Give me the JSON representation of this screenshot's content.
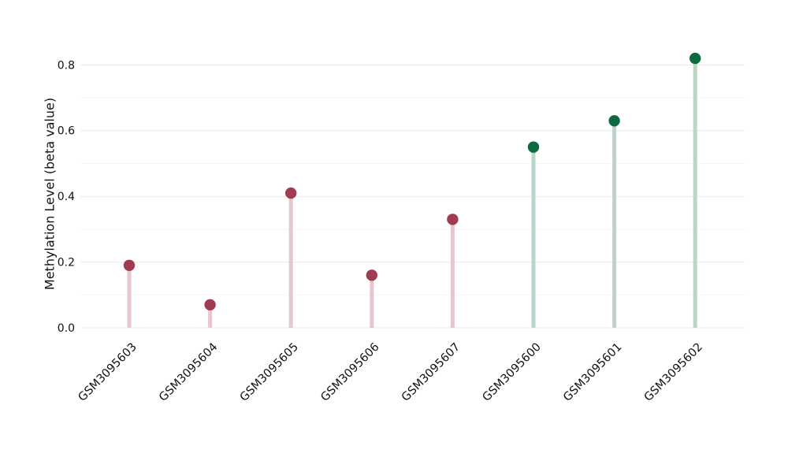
{
  "figure": {
    "background_color": "#ffffff",
    "text_color": "#111111"
  },
  "chart_data": {
    "type": "lollipop",
    "title": "",
    "xlabel": "",
    "ylabel": "Methylation Level (beta value)",
    "categories": [
      "GSM3095603",
      "GSM3095604",
      "GSM3095605",
      "GSM3095606",
      "GSM3095607",
      "GSM3095600",
      "GSM3095601",
      "GSM3095602"
    ],
    "values": [
      0.19,
      0.07,
      0.41,
      0.16,
      0.33,
      0.55,
      0.63,
      0.82
    ],
    "dot_colors": [
      "#a03c52",
      "#a03c52",
      "#a03c52",
      "#a03c52",
      "#a03c52",
      "#0e6b40",
      "#0e6b40",
      "#0e6b40"
    ],
    "stem_colors": [
      "#e6c6d0",
      "#e6c6d0",
      "#e6c6d0",
      "#e6c6d0",
      "#e6c6d0",
      "#bcd4c6",
      "#bcd4c6",
      "#bcd4c6"
    ],
    "ytick_labels": [
      "0.0",
      "0.2",
      "0.4",
      "0.6",
      "0.8"
    ],
    "ytick_values": [
      0.0,
      0.2,
      0.4,
      0.6,
      0.8
    ],
    "minor_ytick_values": [
      0.1,
      0.3,
      0.5,
      0.7
    ],
    "ylim": [
      0.0,
      0.9
    ],
    "grid": "on",
    "major_grid_color": "#e9e9e9",
    "minor_grid_color": "#f5f5f5",
    "legend": "none",
    "x_tick_rotation": -45
  }
}
